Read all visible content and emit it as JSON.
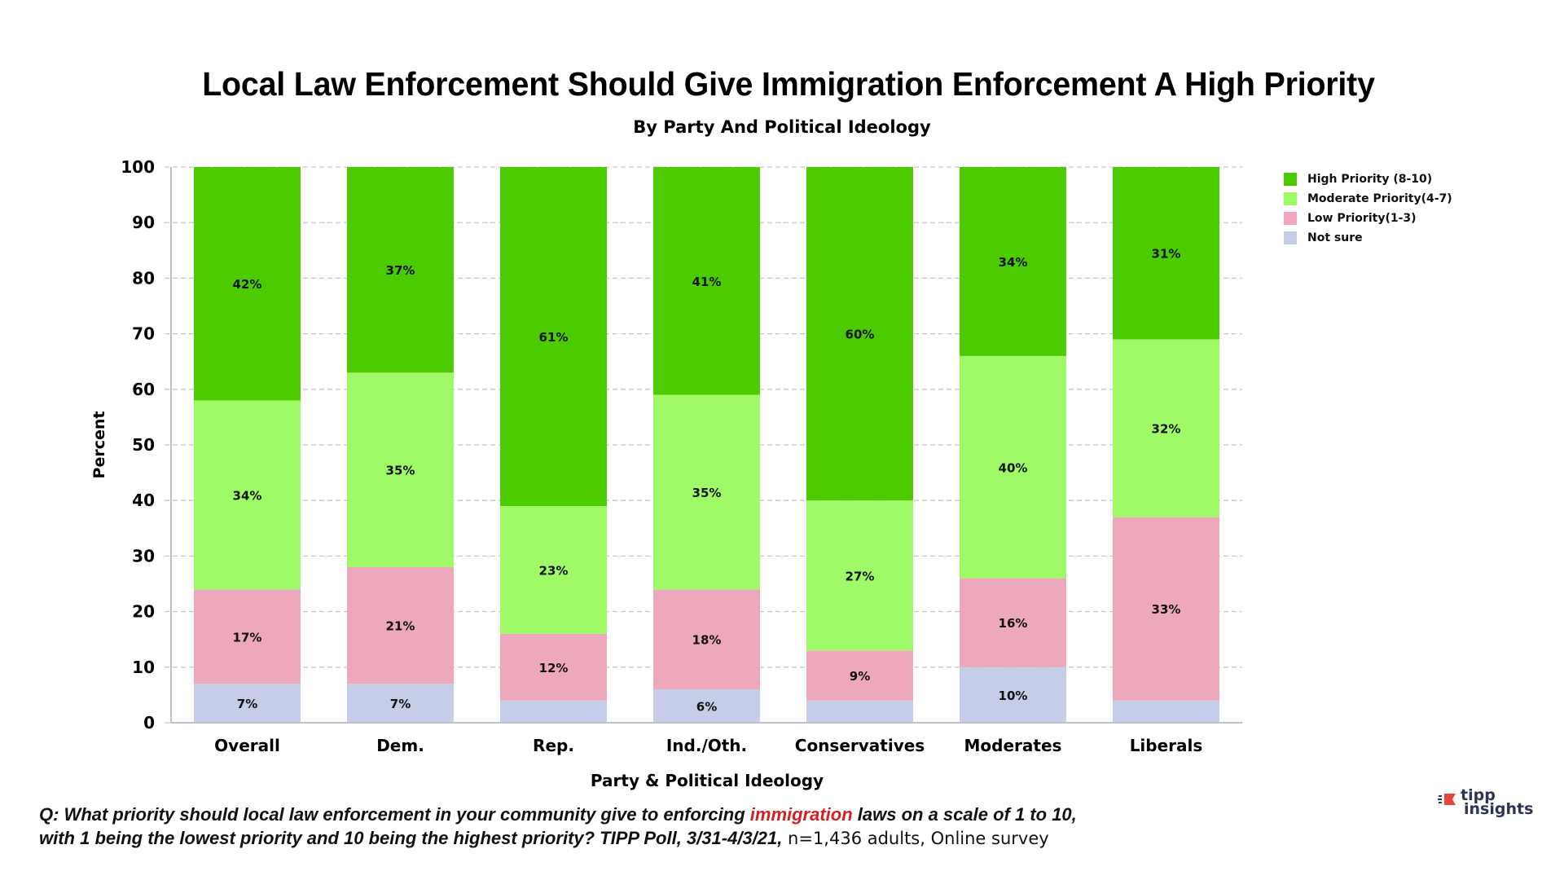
{
  "chart_data": {
    "type": "bar",
    "stacked": true,
    "title": "Local Law Enforcement Should Give Immigration Enforcement A High Priority",
    "subtitle": "By Party And Political Ideology",
    "xlabel": "Party & Political Ideology",
    "ylabel": "Percent",
    "ylim": [
      0,
      100
    ],
    "yticks": [
      0,
      10,
      20,
      30,
      40,
      50,
      60,
      70,
      80,
      90,
      100
    ],
    "grid": true,
    "legend_position": "top-right",
    "categories": [
      "Overall",
      "Dem.",
      "Rep.",
      "Ind./Oth.",
      "Conservatives",
      "Moderates",
      "Liberals"
    ],
    "series": [
      {
        "name": "Not sure",
        "color": "#c5cde8",
        "values": [
          7,
          7,
          4,
          6,
          4,
          10,
          4
        ],
        "labels": [
          "7%",
          "7%",
          "",
          "6%",
          "",
          "10%",
          ""
        ]
      },
      {
        "name": "Low Priority(1-3)",
        "color": "#eea8bc",
        "values": [
          17,
          21,
          12,
          18,
          9,
          16,
          33
        ],
        "labels": [
          "17%",
          "21%",
          "12%",
          "18%",
          "9%",
          "16%",
          "33%"
        ]
      },
      {
        "name": "Moderate Priority(4-7)",
        "color": "#a0fa68",
        "values": [
          34,
          35,
          23,
          35,
          27,
          40,
          32
        ],
        "labels": [
          "34%",
          "35%",
          "23%",
          "35%",
          "27%",
          "40%",
          "32%"
        ]
      },
      {
        "name": "High Priority (8-10)",
        "color": "#4ccb00",
        "values": [
          42,
          37,
          61,
          41,
          60,
          34,
          31
        ],
        "labels": [
          "42%",
          "37%",
          "61%",
          "41%",
          "60%",
          "34%",
          "31%"
        ]
      }
    ],
    "legend_order": [
      "High Priority (8-10)",
      "Moderate Priority(4-7)",
      "Low Priority(1-3)",
      "Not sure"
    ]
  },
  "legend": [
    {
      "label": "High Priority (8-10)",
      "color": "#4ccb00"
    },
    {
      "label": "Moderate Priority(4-7)",
      "color": "#a0fa68"
    },
    {
      "label": "Low Priority(1-3)",
      "color": "#eea8bc"
    },
    {
      "label": "Not sure",
      "color": "#c5cde8"
    }
  ],
  "footer": {
    "q_prefix": "Q:  What priority should local law enforcement in your community give to enforcing ",
    "q_highlight": "immigration",
    "q_suffix": " laws on a scale of 1 to 10,",
    "line2_italic": "with 1 being the lowest priority and 10 being the highest priority? TIPP Poll, 3/31-4/3/21,",
    "line2_plain": " n=1,436 adults, Online survey"
  },
  "logo": {
    "line1": "tipp",
    "line2": "insights",
    "brand_color": "#e8443a",
    "text_color": "#2e3455"
  }
}
